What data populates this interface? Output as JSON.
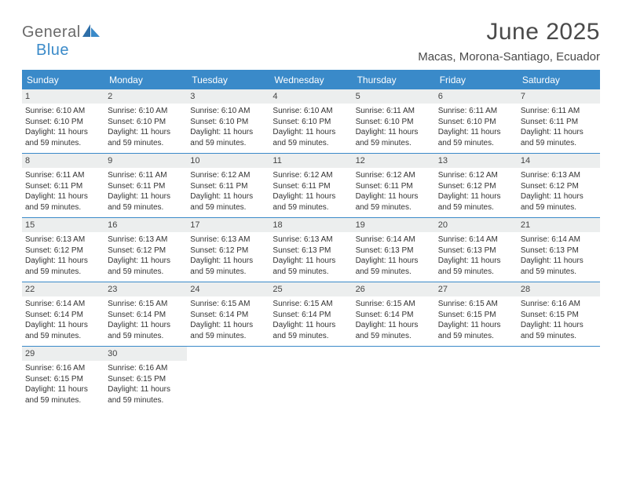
{
  "logo": {
    "word1": "General",
    "word2": "Blue",
    "text_color1": "#6a6a6a",
    "text_color2": "#3a8ac9"
  },
  "title": "June 2025",
  "location": "Macas, Morona-Santiago, Ecuador",
  "colors": {
    "header_bg": "#3a8ac9",
    "header_text": "#ffffff",
    "daynum_bg": "#eceeee",
    "border": "#3a8ac9",
    "body_text": "#333333",
    "title_text": "#4a4a4a"
  },
  "day_headers": [
    "Sunday",
    "Monday",
    "Tuesday",
    "Wednesday",
    "Thursday",
    "Friday",
    "Saturday"
  ],
  "labels": {
    "sunrise": "Sunrise:",
    "sunset": "Sunset:",
    "daylight": "Daylight:"
  },
  "weeks": [
    [
      {
        "n": 1,
        "sr": "6:10 AM",
        "ss": "6:10 PM",
        "dl": "11 hours and 59 minutes."
      },
      {
        "n": 2,
        "sr": "6:10 AM",
        "ss": "6:10 PM",
        "dl": "11 hours and 59 minutes."
      },
      {
        "n": 3,
        "sr": "6:10 AM",
        "ss": "6:10 PM",
        "dl": "11 hours and 59 minutes."
      },
      {
        "n": 4,
        "sr": "6:10 AM",
        "ss": "6:10 PM",
        "dl": "11 hours and 59 minutes."
      },
      {
        "n": 5,
        "sr": "6:11 AM",
        "ss": "6:10 PM",
        "dl": "11 hours and 59 minutes."
      },
      {
        "n": 6,
        "sr": "6:11 AM",
        "ss": "6:10 PM",
        "dl": "11 hours and 59 minutes."
      },
      {
        "n": 7,
        "sr": "6:11 AM",
        "ss": "6:11 PM",
        "dl": "11 hours and 59 minutes."
      }
    ],
    [
      {
        "n": 8,
        "sr": "6:11 AM",
        "ss": "6:11 PM",
        "dl": "11 hours and 59 minutes."
      },
      {
        "n": 9,
        "sr": "6:11 AM",
        "ss": "6:11 PM",
        "dl": "11 hours and 59 minutes."
      },
      {
        "n": 10,
        "sr": "6:12 AM",
        "ss": "6:11 PM",
        "dl": "11 hours and 59 minutes."
      },
      {
        "n": 11,
        "sr": "6:12 AM",
        "ss": "6:11 PM",
        "dl": "11 hours and 59 minutes."
      },
      {
        "n": 12,
        "sr": "6:12 AM",
        "ss": "6:11 PM",
        "dl": "11 hours and 59 minutes."
      },
      {
        "n": 13,
        "sr": "6:12 AM",
        "ss": "6:12 PM",
        "dl": "11 hours and 59 minutes."
      },
      {
        "n": 14,
        "sr": "6:13 AM",
        "ss": "6:12 PM",
        "dl": "11 hours and 59 minutes."
      }
    ],
    [
      {
        "n": 15,
        "sr": "6:13 AM",
        "ss": "6:12 PM",
        "dl": "11 hours and 59 minutes."
      },
      {
        "n": 16,
        "sr": "6:13 AM",
        "ss": "6:12 PM",
        "dl": "11 hours and 59 minutes."
      },
      {
        "n": 17,
        "sr": "6:13 AM",
        "ss": "6:12 PM",
        "dl": "11 hours and 59 minutes."
      },
      {
        "n": 18,
        "sr": "6:13 AM",
        "ss": "6:13 PM",
        "dl": "11 hours and 59 minutes."
      },
      {
        "n": 19,
        "sr": "6:14 AM",
        "ss": "6:13 PM",
        "dl": "11 hours and 59 minutes."
      },
      {
        "n": 20,
        "sr": "6:14 AM",
        "ss": "6:13 PM",
        "dl": "11 hours and 59 minutes."
      },
      {
        "n": 21,
        "sr": "6:14 AM",
        "ss": "6:13 PM",
        "dl": "11 hours and 59 minutes."
      }
    ],
    [
      {
        "n": 22,
        "sr": "6:14 AM",
        "ss": "6:14 PM",
        "dl": "11 hours and 59 minutes."
      },
      {
        "n": 23,
        "sr": "6:15 AM",
        "ss": "6:14 PM",
        "dl": "11 hours and 59 minutes."
      },
      {
        "n": 24,
        "sr": "6:15 AM",
        "ss": "6:14 PM",
        "dl": "11 hours and 59 minutes."
      },
      {
        "n": 25,
        "sr": "6:15 AM",
        "ss": "6:14 PM",
        "dl": "11 hours and 59 minutes."
      },
      {
        "n": 26,
        "sr": "6:15 AM",
        "ss": "6:14 PM",
        "dl": "11 hours and 59 minutes."
      },
      {
        "n": 27,
        "sr": "6:15 AM",
        "ss": "6:15 PM",
        "dl": "11 hours and 59 minutes."
      },
      {
        "n": 28,
        "sr": "6:16 AM",
        "ss": "6:15 PM",
        "dl": "11 hours and 59 minutes."
      }
    ],
    [
      {
        "n": 29,
        "sr": "6:16 AM",
        "ss": "6:15 PM",
        "dl": "11 hours and 59 minutes."
      },
      {
        "n": 30,
        "sr": "6:16 AM",
        "ss": "6:15 PM",
        "dl": "11 hours and 59 minutes."
      },
      null,
      null,
      null,
      null,
      null
    ]
  ]
}
